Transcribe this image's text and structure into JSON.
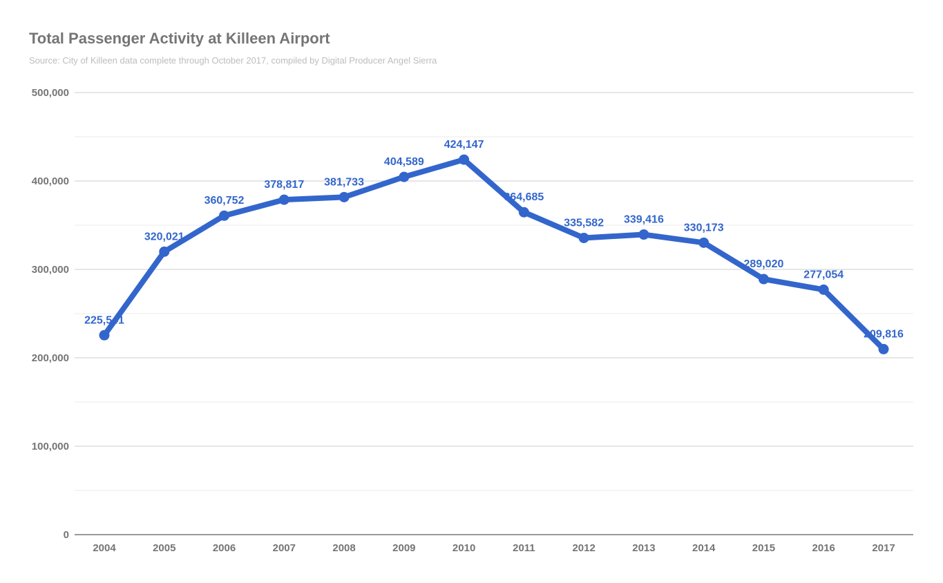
{
  "chart_data": {
    "type": "line",
    "title": "Total Passenger Activity at Killeen Airport",
    "subtitle": "Source: City of Killeen data complete through October 2017, compiled by Digital Producer Angel Sierra",
    "xlabel": "",
    "ylabel": "",
    "categories": [
      "2004",
      "2005",
      "2006",
      "2007",
      "2008",
      "2009",
      "2010",
      "2011",
      "2012",
      "2013",
      "2014",
      "2015",
      "2016",
      "2017"
    ],
    "values": [
      225541,
      320021,
      360752,
      378817,
      381733,
      404589,
      424147,
      364685,
      335582,
      339416,
      330173,
      289020,
      277054,
      209816
    ],
    "data_labels": [
      "225,541",
      "320,021",
      "360,752",
      "378,817",
      "381,733",
      "404,589",
      "424,147",
      "364,685",
      "335,582",
      "339,416",
      "330,173",
      "289,020",
      "277,054",
      "209,816"
    ],
    "ylim": [
      0,
      500000
    ],
    "yticks": [
      0,
      100000,
      200000,
      300000,
      400000,
      500000
    ],
    "ytick_labels": [
      "0",
      "100,000",
      "200,000",
      "300,000",
      "400,000",
      "500,000"
    ],
    "grid": true,
    "legend": "none",
    "colors": {
      "series": "#3366cc",
      "text": "#757575",
      "grid": "#cccccc"
    }
  }
}
